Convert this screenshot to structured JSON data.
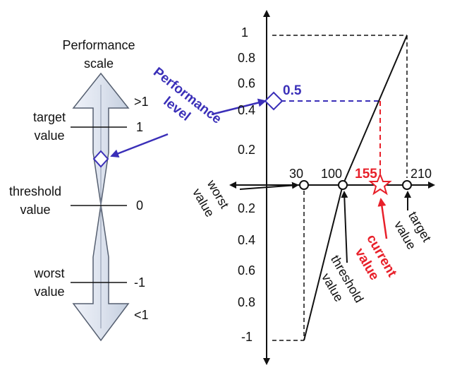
{
  "colors": {
    "ink": "#111111",
    "accent_blue": "#3a2fb8",
    "accent_red": "#e8202a",
    "arrow_fill_light": "#eef1f8",
    "arrow_fill_mid": "#c5cfdf"
  },
  "scale": {
    "title_line1": "Performance",
    "title_line2": "scale",
    "top_label": ">1",
    "bottom_label": "<1",
    "levels": [
      {
        "name_line1": "target",
        "name_line2": "value",
        "value": "1"
      },
      {
        "name_line1": "threshold",
        "name_line2": "value",
        "value": "0"
      },
      {
        "name_line1": "worst",
        "name_line2": "value",
        "value": "-1"
      }
    ]
  },
  "callout": {
    "performance_level_line1": "Performance",
    "performance_level_line2": "level",
    "level_value": "0.5"
  },
  "graph": {
    "y_ticks": [
      "1",
      "0.8",
      "0.6",
      "0.4",
      "0.2",
      "0.2",
      "0.4",
      "0.6",
      "0.8",
      "-1"
    ],
    "x_ticks": [
      "30",
      "100",
      "155",
      "210"
    ],
    "worst_line1": "worst",
    "worst_line2": "value",
    "threshold_line1": "threshold",
    "threshold_line2": "value",
    "target_line1": "target",
    "target_line2": "value",
    "current_line1": "current",
    "current_line2": "value"
  }
}
